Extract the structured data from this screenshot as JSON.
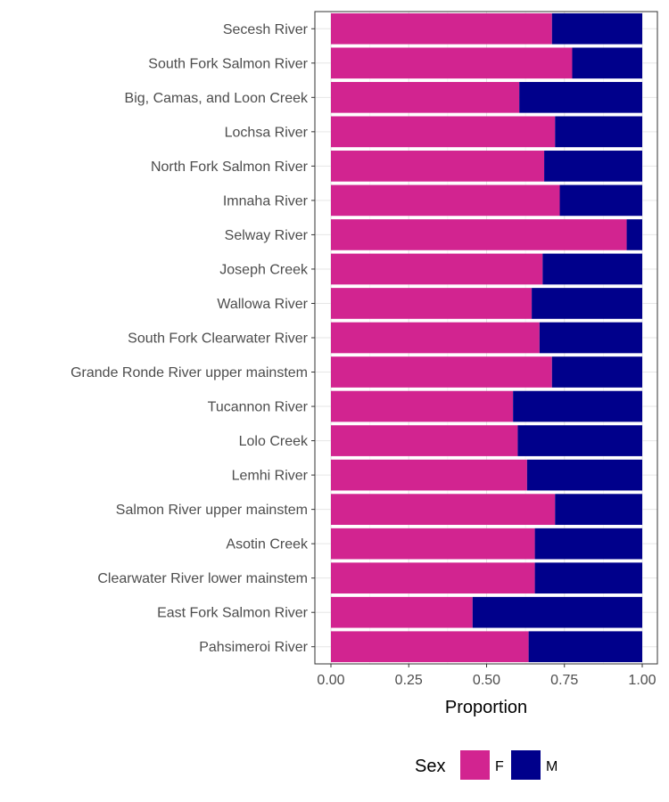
{
  "chart_data": {
    "type": "bar",
    "orientation": "horizontal",
    "stacked": true,
    "categories": [
      "Secesh River",
      "South Fork Salmon River",
      "Big, Camas, and Loon Creek",
      "Lochsa River",
      "North Fork Salmon River",
      "Imnaha River",
      "Selway River",
      "Joseph Creek",
      "Wallowa River",
      "South Fork Clearwater River",
      "Grande Ronde River upper mainstem",
      "Tucannon River",
      "Lolo Creek",
      "Lemhi River",
      "Salmon River upper mainstem",
      "Asotin Creek",
      "Clearwater River lower mainstem",
      "East Fork Salmon River",
      "Pahsimeroi River"
    ],
    "series": [
      {
        "name": "F",
        "color": "#d22490",
        "values": [
          0.71,
          0.775,
          0.605,
          0.72,
          0.685,
          0.735,
          0.95,
          0.68,
          0.645,
          0.67,
          0.71,
          0.585,
          0.6,
          0.63,
          0.72,
          0.655,
          0.655,
          0.455,
          0.635
        ]
      },
      {
        "name": "M",
        "color": "#00008b",
        "values": [
          0.29,
          0.225,
          0.395,
          0.28,
          0.315,
          0.265,
          0.05,
          0.32,
          0.355,
          0.33,
          0.29,
          0.415,
          0.4,
          0.37,
          0.28,
          0.345,
          0.345,
          0.545,
          0.365
        ]
      }
    ],
    "xlabel": "Proportion",
    "ylabel": "",
    "xlim": [
      0,
      1
    ],
    "xticks": [
      "0.00",
      "0.25",
      "0.50",
      "0.75",
      "1.00"
    ],
    "grid": true,
    "legend": {
      "title": "Sex",
      "position": "bottom"
    }
  }
}
